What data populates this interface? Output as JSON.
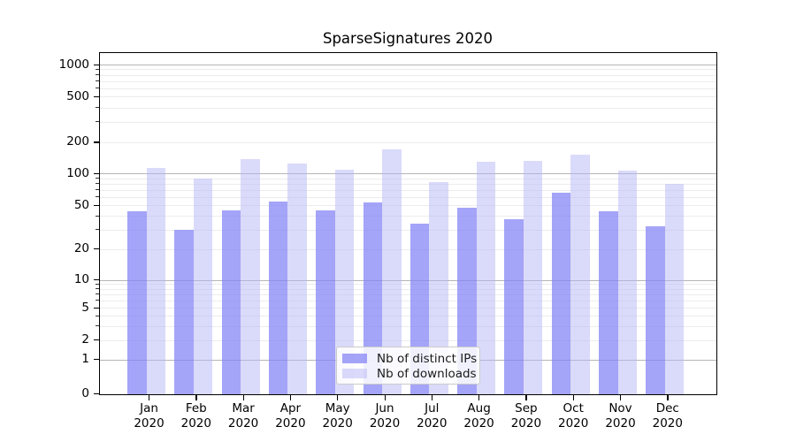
{
  "title": "SparseSignatures 2020",
  "chart_data": {
    "type": "bar",
    "title": "SparseSignatures 2020",
    "categories": [
      "Jan 2020",
      "Feb 2020",
      "Mar 2020",
      "Apr 2020",
      "May 2020",
      "Jun 2020",
      "Jul 2020",
      "Aug 2020",
      "Sep 2020",
      "Oct 2020",
      "Nov 2020",
      "Dec 2020"
    ],
    "series": [
      {
        "name": "Nb of distinct IPs",
        "fill": "rgba(130,130,246,0.73)",
        "apparent_color": "#a3a3f6",
        "values": [
          44,
          30,
          45,
          54,
          45,
          53,
          34,
          47,
          37,
          65,
          44,
          32
        ]
      },
      {
        "name": "Nb of downloads",
        "fill": "rgba(182,182,246,0.5)",
        "apparent_color": "#d9d9fa",
        "values": [
          113,
          90,
          137,
          124,
          108,
          170,
          83,
          129,
          132,
          152,
          106,
          80
        ]
      }
    ],
    "xlabel": "",
    "ylabel": "",
    "yscale": "symlog",
    "yticks": [
      0,
      1,
      2,
      5,
      10,
      20,
      50,
      100,
      200,
      500,
      1000
    ],
    "ylim": [
      0,
      1150
    ],
    "grid": "horizontal major and log-minor gridlines",
    "legend_position": "lower center"
  }
}
